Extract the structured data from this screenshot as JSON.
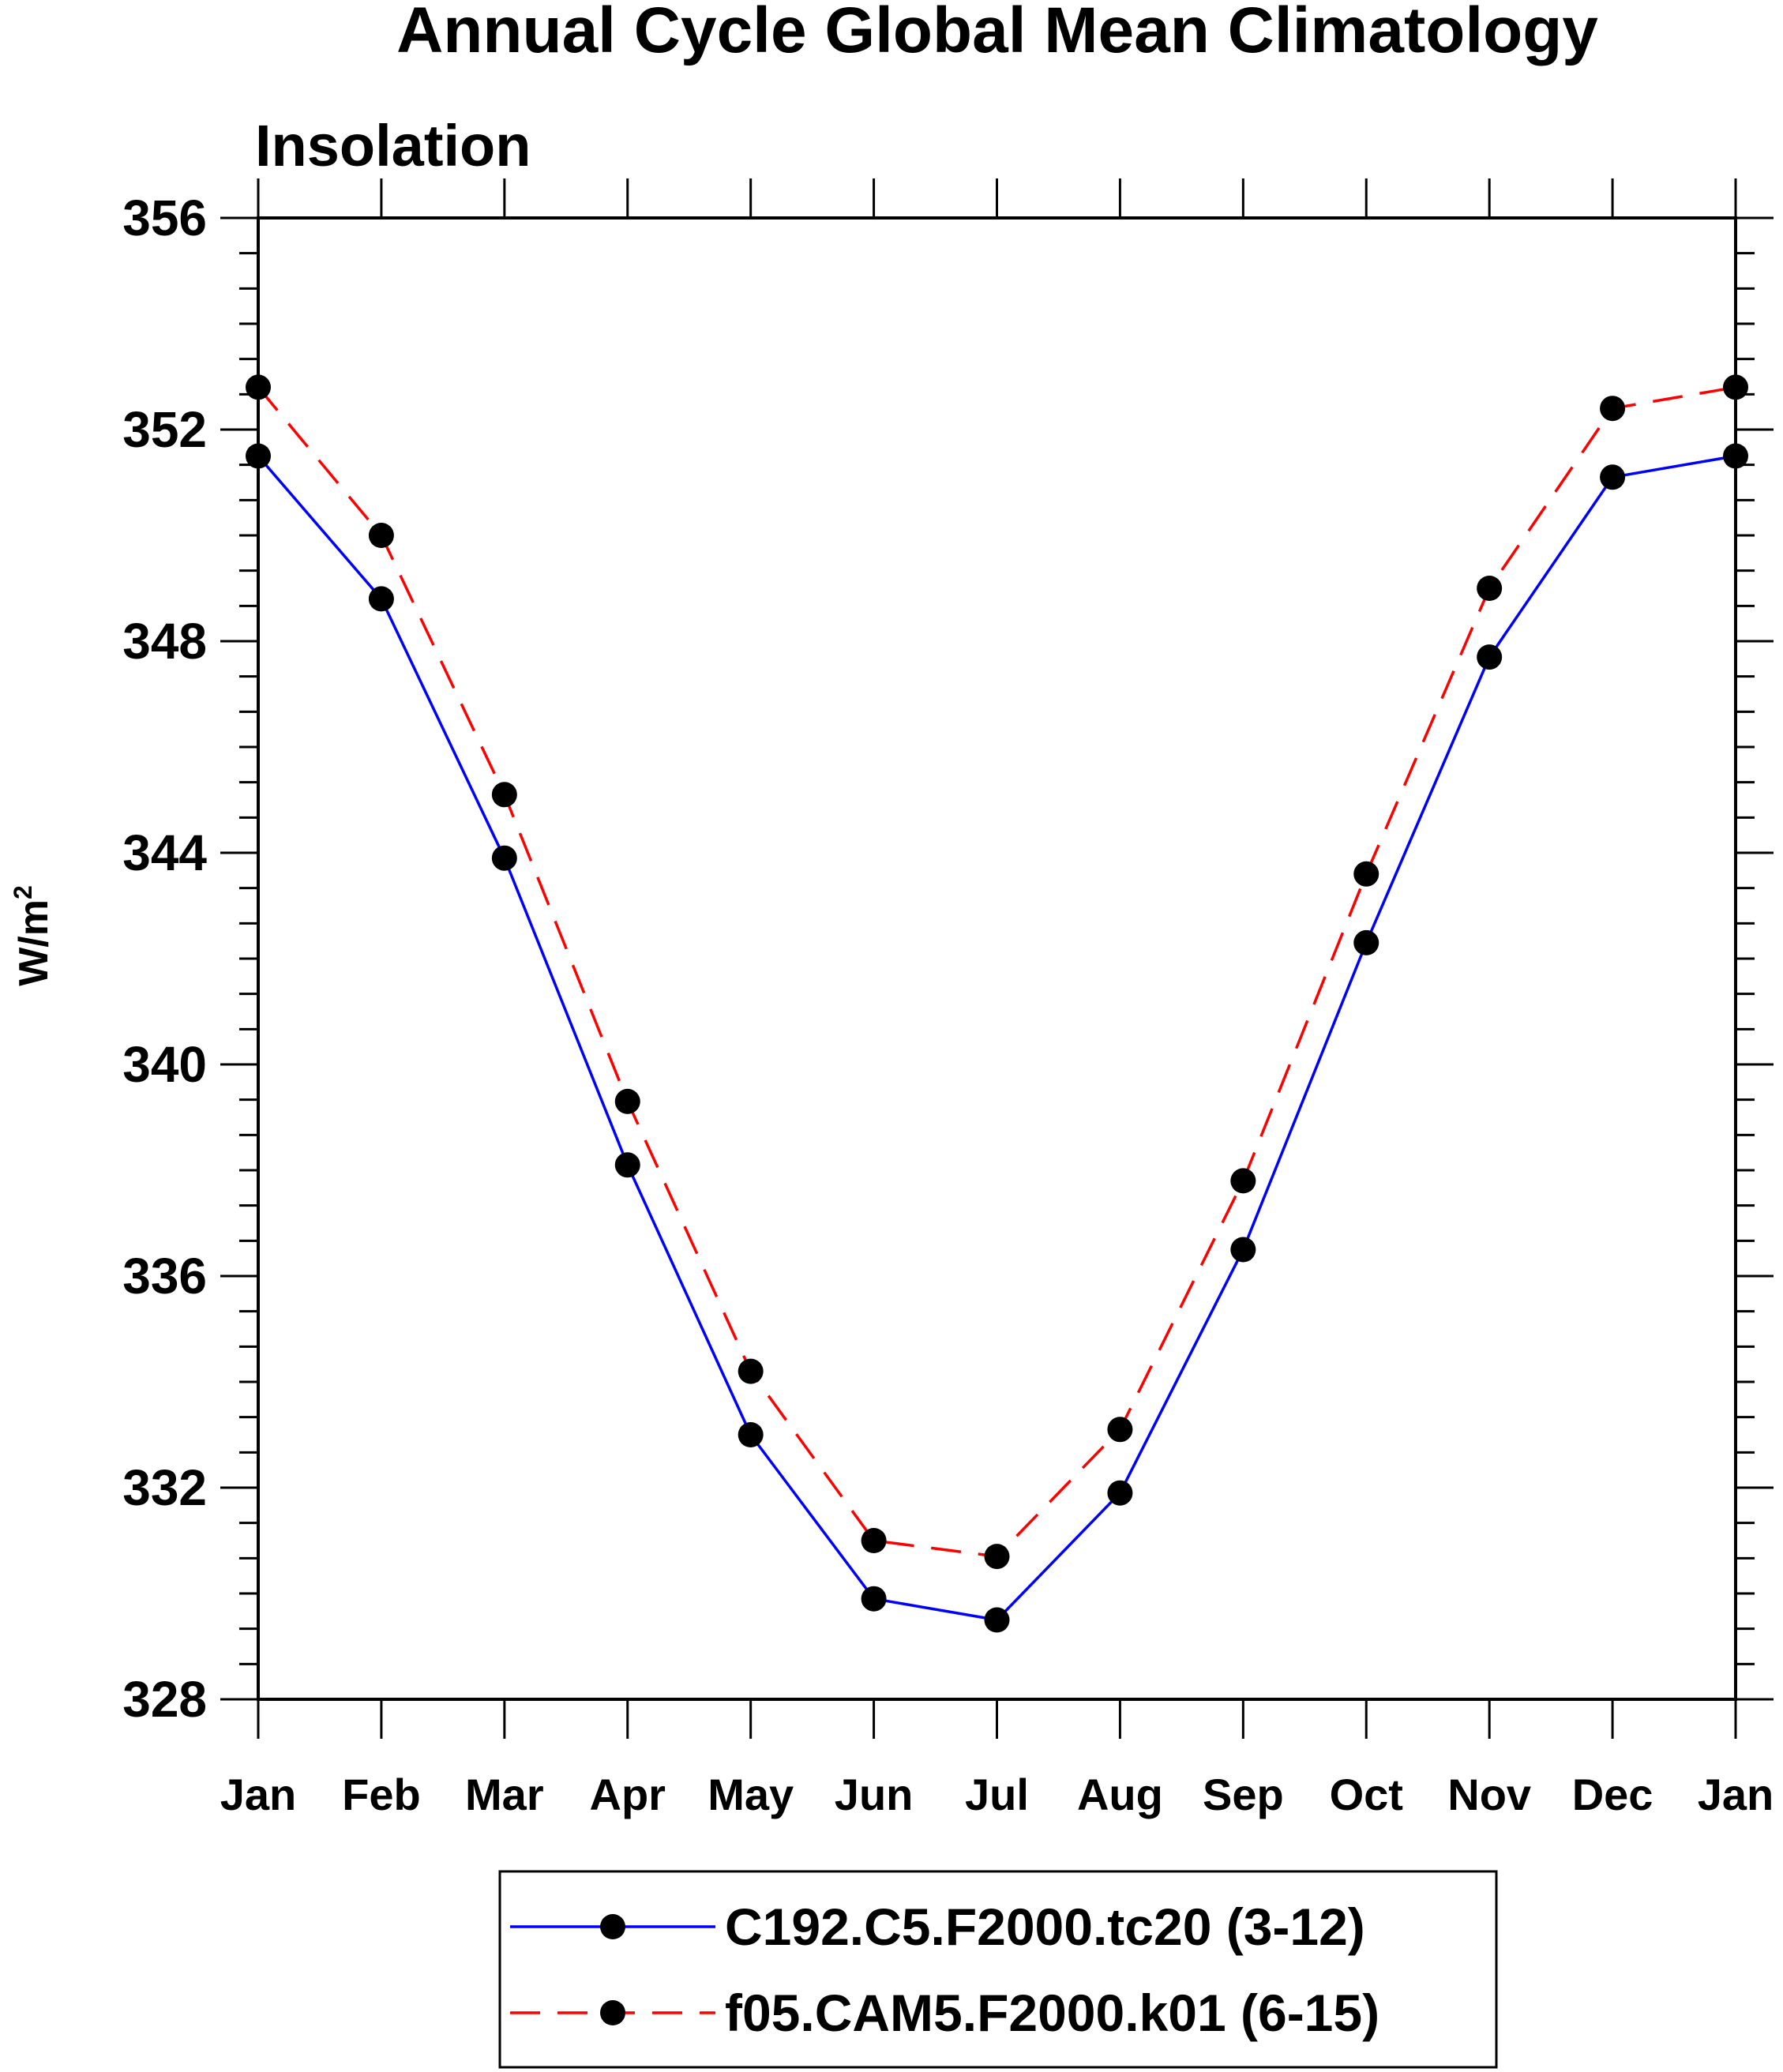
{
  "chart_data": {
    "type": "line",
    "title": "Annual Cycle Global Mean Climatology",
    "subtitle": "Insolation",
    "ylabel_base": "W/m",
    "ylabel_sup": "2",
    "xlabel": "",
    "categories": [
      "Jan",
      "Feb",
      "Mar",
      "Apr",
      "May",
      "Jun",
      "Jul",
      "Aug",
      "Sep",
      "Oct",
      "Nov",
      "Dec",
      "Jan"
    ],
    "ylim": [
      328,
      356
    ],
    "yticks": [
      328,
      332,
      336,
      340,
      344,
      348,
      352,
      356
    ],
    "ytick_labels": [
      "328",
      "332",
      "336",
      "340",
      "344",
      "348",
      "352",
      "356"
    ],
    "grid": false,
    "legend_position": "bottom",
    "series": [
      {
        "name": "C192.C5.F2000.tc20 (3-12)",
        "color": "#0000ff",
        "line_style": "solid",
        "marker": "filled-circle",
        "marker_color": "#000000",
        "values": [
          351.5,
          348.8,
          343.9,
          338.1,
          333.0,
          329.9,
          329.5,
          331.9,
          336.5,
          342.3,
          347.7,
          351.1,
          351.5
        ]
      },
      {
        "name": "f05.CAM5.F2000.k01 (6-15)",
        "color": "#ff0000",
        "line_style": "dashed",
        "marker": "filled-circle",
        "marker_color": "#000000",
        "values": [
          352.8,
          350.0,
          345.1,
          339.3,
          334.2,
          331.0,
          330.7,
          333.1,
          337.8,
          343.6,
          349.0,
          352.4,
          352.8
        ]
      }
    ]
  }
}
